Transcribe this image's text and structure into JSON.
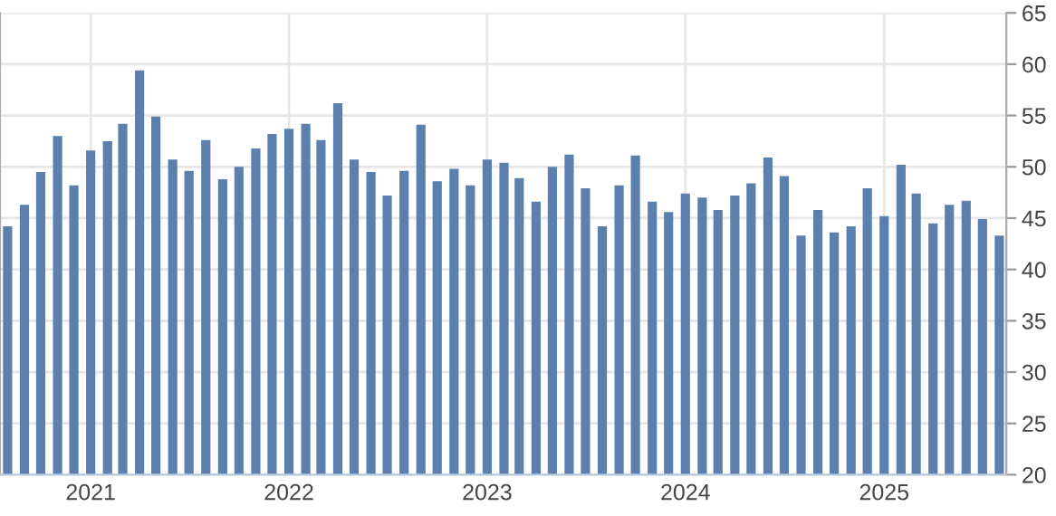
{
  "chart_data": {
    "type": "bar",
    "color": "#5b80ad",
    "x": [
      "2020-08",
      "2020-09",
      "2020-10",
      "2020-11",
      "2020-12",
      "2021-01",
      "2021-02",
      "2021-03",
      "2021-04",
      "2021-05",
      "2021-06",
      "2021-07",
      "2021-08",
      "2021-09",
      "2021-10",
      "2021-11",
      "2021-12",
      "2022-01",
      "2022-02",
      "2022-03",
      "2022-04",
      "2022-05",
      "2022-06",
      "2022-07",
      "2022-08",
      "2022-09",
      "2022-10",
      "2022-11",
      "2022-12",
      "2023-01",
      "2023-02",
      "2023-03",
      "2023-04",
      "2023-05",
      "2023-06",
      "2023-07",
      "2023-08",
      "2023-09",
      "2023-10",
      "2023-11",
      "2023-12",
      "2024-01",
      "2024-02",
      "2024-03",
      "2024-04",
      "2024-05",
      "2024-06",
      "2024-07",
      "2024-08",
      "2024-09",
      "2024-10",
      "2024-11",
      "2024-12",
      "2025-01",
      "2025-02",
      "2025-03",
      "2025-04",
      "2025-05",
      "2025-06",
      "2025-07",
      "2025-08"
    ],
    "values": [
      44.2,
      46.3,
      49.5,
      53.0,
      48.2,
      51.6,
      52.5,
      54.2,
      59.4,
      54.9,
      50.7,
      49.6,
      52.6,
      48.8,
      50.0,
      51.8,
      53.2,
      53.7,
      54.2,
      52.6,
      56.2,
      50.7,
      49.5,
      47.2,
      49.6,
      54.1,
      48.6,
      49.8,
      48.2,
      50.7,
      50.4,
      48.9,
      46.6,
      50.0,
      51.2,
      47.9,
      44.2,
      48.2,
      51.1,
      46.6,
      45.6,
      47.4,
      47.0,
      45.8,
      47.2,
      48.4,
      50.9,
      49.1,
      43.3,
      45.8,
      43.6,
      44.2,
      47.9,
      45.2,
      50.2,
      47.4,
      44.5,
      46.3,
      46.7,
      44.9,
      43.3
    ],
    "xlim": [
      "2020-07-18",
      "2025-08-14"
    ],
    "xticks": [
      {
        "value": "2021-01",
        "label": "2021"
      },
      {
        "value": "2022-01",
        "label": "2022"
      },
      {
        "value": "2023-01",
        "label": "2023"
      },
      {
        "value": "2024-01",
        "label": "2024"
      },
      {
        "value": "2025-01",
        "label": "2025"
      }
    ],
    "ylim": [
      20,
      65
    ],
    "yticks": [
      20,
      25,
      30,
      35,
      40,
      45,
      50,
      55,
      60,
      65
    ],
    "grid": true
  }
}
